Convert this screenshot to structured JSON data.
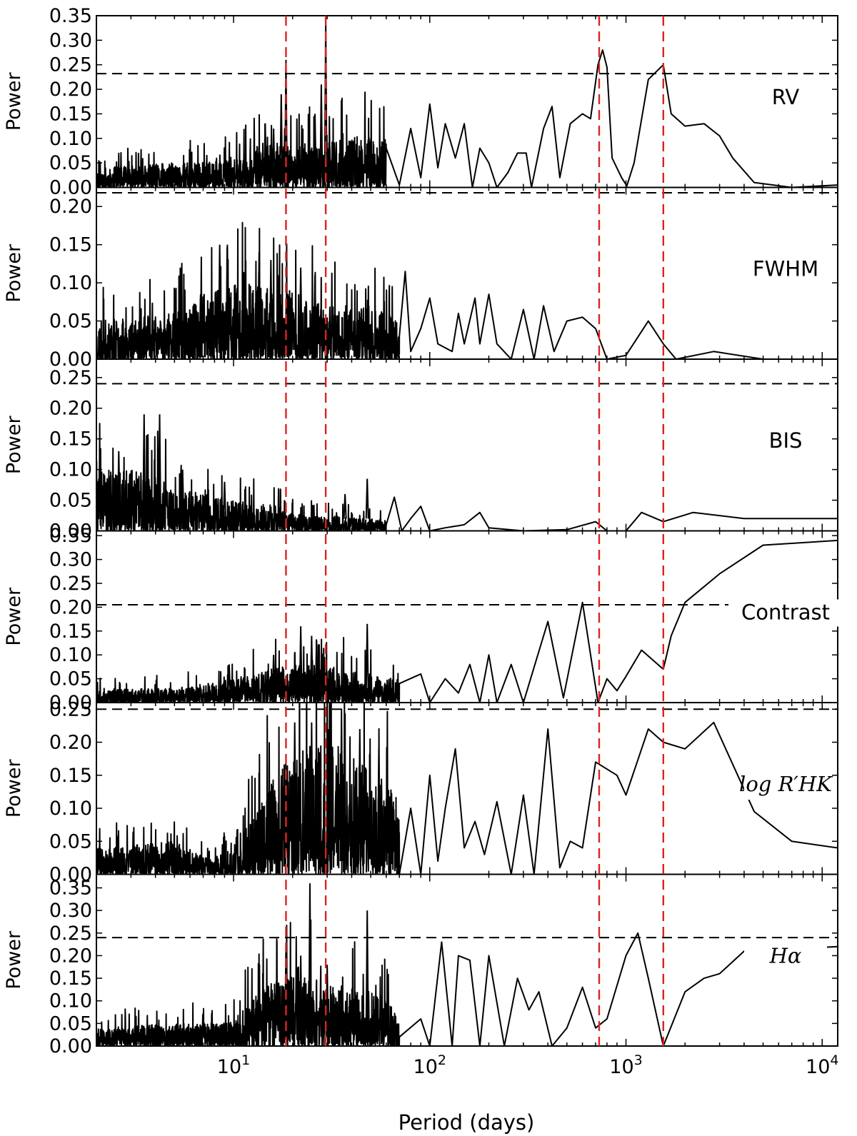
{
  "chart_data": {
    "type": "line",
    "xlabel": "Period (days)",
    "xscale": "log",
    "xlim": [
      2,
      12000
    ],
    "x_ticks": [
      {
        "value": 10,
        "base": "10",
        "exp": "1"
      },
      {
        "value": 100,
        "base": "10",
        "exp": "2"
      },
      {
        "value": 1000,
        "base": "10",
        "exp": "3"
      },
      {
        "value": 10000,
        "base": "10",
        "exp": "4"
      }
    ],
    "vertical_markers": {
      "color": "#dd2222",
      "periods": [
        18.5,
        29.5,
        730,
        1550
      ]
    },
    "panels": [
      {
        "label": "RV",
        "label_style": "sans",
        "ylabel": "Power",
        "ylim": [
          0,
          0.35
        ],
        "threshold": 0.232,
        "seed": 11,
        "yticks": [
          "0.00",
          "0.05",
          "0.10",
          "0.15",
          "0.20",
          "0.25",
          "0.30",
          "0.35"
        ],
        "noise": [
          [
            2,
            0.04
          ],
          [
            5,
            0.05
          ],
          [
            10,
            0.055
          ],
          [
            14,
            0.09
          ],
          [
            20,
            0.09
          ],
          [
            30,
            0.09
          ],
          [
            50,
            0.11
          ],
          [
            70,
            0.09
          ]
        ],
        "spikes": [
          [
            18.5,
            0.26
          ],
          [
            29.5,
            0.34
          ],
          [
            14.5,
            0.13
          ],
          [
            17.5,
            0.19
          ],
          [
            28,
            0.21
          ],
          [
            26,
            0.15
          ],
          [
            16,
            0.12
          ]
        ],
        "curve": [
          [
            60,
            0.08
          ],
          [
            70,
            0.005
          ],
          [
            80,
            0.12
          ],
          [
            90,
            0.02
          ],
          [
            100,
            0.17
          ],
          [
            110,
            0.04
          ],
          [
            120,
            0.13
          ],
          [
            135,
            0.06
          ],
          [
            150,
            0.13
          ],
          [
            165,
            0.0
          ],
          [
            180,
            0.08
          ],
          [
            200,
            0.05
          ],
          [
            220,
            0.0
          ],
          [
            250,
            0.03
          ],
          [
            280,
            0.07
          ],
          [
            310,
            0.07
          ],
          [
            330,
            0.0
          ],
          [
            380,
            0.12
          ],
          [
            420,
            0.165
          ],
          [
            460,
            0.02
          ],
          [
            520,
            0.13
          ],
          [
            600,
            0.15
          ],
          [
            660,
            0.14
          ],
          [
            720,
            0.25
          ],
          [
            760,
            0.28
          ],
          [
            800,
            0.245
          ],
          [
            850,
            0.06
          ],
          [
            950,
            0.02
          ],
          [
            1010,
            0.003
          ],
          [
            1100,
            0.05
          ],
          [
            1300,
            0.22
          ],
          [
            1550,
            0.25
          ],
          [
            1700,
            0.15
          ],
          [
            2000,
            0.125
          ],
          [
            2500,
            0.13
          ],
          [
            3000,
            0.105
          ],
          [
            3500,
            0.06
          ],
          [
            4500,
            0.01
          ],
          [
            7000,
            0.0
          ],
          [
            12000,
            0.005
          ]
        ]
      },
      {
        "label": "FWHM",
        "label_style": "sans",
        "ylabel": "Power",
        "ylim": [
          0,
          0.225
        ],
        "threshold": 0.218,
        "seed": 23,
        "yticks": [
          "0.00",
          "0.05",
          "0.10",
          "0.15",
          "0.20"
        ],
        "noise": [
          [
            2,
            0.05
          ],
          [
            5,
            0.06
          ],
          [
            8,
            0.1
          ],
          [
            12,
            0.1
          ],
          [
            20,
            0.09
          ],
          [
            30,
            0.07
          ],
          [
            50,
            0.07
          ],
          [
            70,
            0.05
          ]
        ],
        "spikes": [
          [
            8.5,
            0.15
          ],
          [
            9.3,
            0.15
          ],
          [
            13.5,
            0.14
          ],
          [
            15.5,
            0.13
          ],
          [
            17,
            0.11
          ],
          [
            22,
            0.12
          ],
          [
            26,
            0.11
          ]
        ],
        "curve": [
          [
            70,
            0.03
          ],
          [
            75,
            0.115
          ],
          [
            80,
            0.01
          ],
          [
            90,
            0.04
          ],
          [
            100,
            0.08
          ],
          [
            110,
            0.02
          ],
          [
            130,
            0.01
          ],
          [
            140,
            0.06
          ],
          [
            150,
            0.02
          ],
          [
            170,
            0.08
          ],
          [
            180,
            0.02
          ],
          [
            200,
            0.085
          ],
          [
            220,
            0.02
          ],
          [
            260,
            0.0
          ],
          [
            300,
            0.065
          ],
          [
            340,
            0.0
          ],
          [
            380,
            0.07
          ],
          [
            430,
            0.01
          ],
          [
            500,
            0.05
          ],
          [
            600,
            0.055
          ],
          [
            700,
            0.04
          ],
          [
            800,
            0.0
          ],
          [
            1000,
            0.005
          ],
          [
            1300,
            0.05
          ],
          [
            1550,
            0.02
          ],
          [
            1800,
            0.0
          ],
          [
            2800,
            0.01
          ],
          [
            5000,
            0.0
          ],
          [
            12000,
            0.0
          ]
        ]
      },
      {
        "label": "BIS",
        "label_style": "sans",
        "ylabel": "Power",
        "ylim": [
          0,
          0.28
        ],
        "threshold": 0.24,
        "seed": 37,
        "yticks": [
          "0.00",
          "0.05",
          "0.10",
          "0.15",
          "0.20",
          "0.25"
        ],
        "noise": [
          [
            2,
            0.1
          ],
          [
            3.5,
            0.1
          ],
          [
            5,
            0.07
          ],
          [
            10,
            0.05
          ],
          [
            15,
            0.045
          ],
          [
            20,
            0.03
          ],
          [
            30,
            0.025
          ],
          [
            50,
            0.02
          ],
          [
            70,
            0.015
          ]
        ],
        "spikes": [
          [
            3.5,
            0.19
          ],
          [
            4.2,
            0.19
          ],
          [
            2.6,
            0.13
          ],
          [
            5.5,
            0.1
          ],
          [
            9,
            0.08
          ],
          [
            48,
            0.085
          ],
          [
            37,
            0.06
          ]
        ],
        "curve": [
          [
            60,
            0.01
          ],
          [
            66,
            0.055
          ],
          [
            72,
            0.0
          ],
          [
            80,
            0.02
          ],
          [
            90,
            0.04
          ],
          [
            100,
            0.0
          ],
          [
            120,
            0.005
          ],
          [
            150,
            0.01
          ],
          [
            180,
            0.03
          ],
          [
            200,
            0.005
          ],
          [
            300,
            0.0
          ],
          [
            500,
            0.002
          ],
          [
            700,
            0.015
          ],
          [
            800,
            0.0
          ],
          [
            1000,
            0.0
          ],
          [
            1200,
            0.03
          ],
          [
            1550,
            0.015
          ],
          [
            2200,
            0.03
          ],
          [
            4000,
            0.02
          ],
          [
            12000,
            0.02
          ]
        ]
      },
      {
        "label": "Contrast",
        "label_style": "sans",
        "ylabel": "Power",
        "ylim": [
          0,
          0.36
        ],
        "threshold": 0.205,
        "seed": 53,
        "yticks": [
          "0.00",
          "0.05",
          "0.10",
          "0.15",
          "0.20",
          "0.25",
          "0.30",
          "0.35"
        ],
        "noise": [
          [
            2,
            0.03
          ],
          [
            5,
            0.03
          ],
          [
            10,
            0.05
          ],
          [
            15,
            0.07
          ],
          [
            20,
            0.08
          ],
          [
            30,
            0.08
          ],
          [
            50,
            0.06
          ],
          [
            70,
            0.05
          ]
        ],
        "spikes": [
          [
            22,
            0.16
          ],
          [
            25,
            0.14
          ],
          [
            26.5,
            0.13
          ],
          [
            48,
            0.165
          ],
          [
            16,
            0.1
          ],
          [
            9.5,
            0.08
          ]
        ],
        "curve": [
          [
            70,
            0.04
          ],
          [
            90,
            0.06
          ],
          [
            100,
            0.0
          ],
          [
            120,
            0.05
          ],
          [
            140,
            0.02
          ],
          [
            160,
            0.08
          ],
          [
            180,
            0.0
          ],
          [
            200,
            0.1
          ],
          [
            220,
            0.0
          ],
          [
            260,
            0.08
          ],
          [
            300,
            0.0
          ],
          [
            400,
            0.17
          ],
          [
            480,
            0.01
          ],
          [
            600,
            0.21
          ],
          [
            720,
            0.0
          ],
          [
            800,
            0.05
          ],
          [
            900,
            0.025
          ],
          [
            1000,
            0.055
          ],
          [
            1200,
            0.11
          ],
          [
            1550,
            0.07
          ],
          [
            1700,
            0.14
          ],
          [
            2000,
            0.21
          ],
          [
            3000,
            0.27
          ],
          [
            5000,
            0.33
          ],
          [
            12000,
            0.34
          ]
        ]
      },
      {
        "label": "log R′HK",
        "label_style": "serif",
        "ylabel": "Power",
        "ylim": [
          0,
          0.26
        ],
        "threshold": 0.25,
        "seed": 71,
        "yticks": [
          "0.00",
          "0.05",
          "0.10",
          "0.15",
          "0.20",
          "0.25"
        ],
        "noise": [
          [
            2,
            0.04
          ],
          [
            5,
            0.05
          ],
          [
            8,
            0.02
          ],
          [
            12,
            0.08
          ],
          [
            18,
            0.17
          ],
          [
            25,
            0.2
          ],
          [
            35,
            0.2
          ],
          [
            50,
            0.16
          ],
          [
            70,
            0.12
          ]
        ],
        "spikes": [
          [
            20.5,
            0.23
          ],
          [
            25,
            0.23
          ],
          [
            30.5,
            0.22
          ],
          [
            35.5,
            0.25
          ],
          [
            44,
            0.22
          ],
          [
            55,
            0.19
          ]
        ],
        "curve": [
          [
            70,
            0.0
          ],
          [
            80,
            0.1
          ],
          [
            90,
            0.0
          ],
          [
            100,
            0.15
          ],
          [
            110,
            0.02
          ],
          [
            120,
            0.1
          ],
          [
            135,
            0.19
          ],
          [
            150,
            0.04
          ],
          [
            170,
            0.08
          ],
          [
            190,
            0.03
          ],
          [
            220,
            0.11
          ],
          [
            260,
            0.0
          ],
          [
            300,
            0.12
          ],
          [
            340,
            0.0
          ],
          [
            400,
            0.22
          ],
          [
            460,
            0.01
          ],
          [
            520,
            0.05
          ],
          [
            600,
            0.04
          ],
          [
            700,
            0.17
          ],
          [
            900,
            0.15
          ],
          [
            1000,
            0.12
          ],
          [
            1300,
            0.22
          ],
          [
            1550,
            0.2
          ],
          [
            2000,
            0.19
          ],
          [
            2800,
            0.23
          ],
          [
            4500,
            0.095
          ],
          [
            7000,
            0.05
          ],
          [
            12000,
            0.04
          ]
        ]
      },
      {
        "label": "Hα",
        "label_style": "serif",
        "ylabel": "Power",
        "ylim": [
          0,
          0.38
        ],
        "threshold": 0.24,
        "seed": 89,
        "yticks": [
          "0.00",
          "0.05",
          "0.10",
          "0.15",
          "0.20",
          "0.25",
          "0.30",
          "0.35"
        ],
        "noise": [
          [
            2,
            0.04
          ],
          [
            5,
            0.05
          ],
          [
            10,
            0.06
          ],
          [
            14,
            0.13
          ],
          [
            20,
            0.16
          ],
          [
            30,
            0.14
          ],
          [
            50,
            0.12
          ],
          [
            70,
            0.1
          ]
        ],
        "spikes": [
          [
            24.5,
            0.36
          ],
          [
            18.5,
            0.22
          ],
          [
            48,
            0.3
          ],
          [
            22,
            0.2
          ],
          [
            30,
            0.18
          ]
        ],
        "curve": [
          [
            70,
            0.02
          ],
          [
            90,
            0.06
          ],
          [
            100,
            0.0
          ],
          [
            115,
            0.23
          ],
          [
            130,
            0.0
          ],
          [
            140,
            0.2
          ],
          [
            160,
            0.19
          ],
          [
            180,
            0.0
          ],
          [
            200,
            0.2
          ],
          [
            240,
            0.0
          ],
          [
            280,
            0.15
          ],
          [
            320,
            0.08
          ],
          [
            360,
            0.12
          ],
          [
            420,
            0.0
          ],
          [
            500,
            0.04
          ],
          [
            600,
            0.13
          ],
          [
            700,
            0.04
          ],
          [
            800,
            0.06
          ],
          [
            1000,
            0.2
          ],
          [
            1150,
            0.25
          ],
          [
            1300,
            0.15
          ],
          [
            1550,
            0.0
          ],
          [
            2000,
            0.12
          ],
          [
            2500,
            0.15
          ],
          [
            3000,
            0.16
          ],
          [
            4000,
            0.21
          ],
          [
            12000,
            0.22
          ]
        ]
      }
    ]
  }
}
